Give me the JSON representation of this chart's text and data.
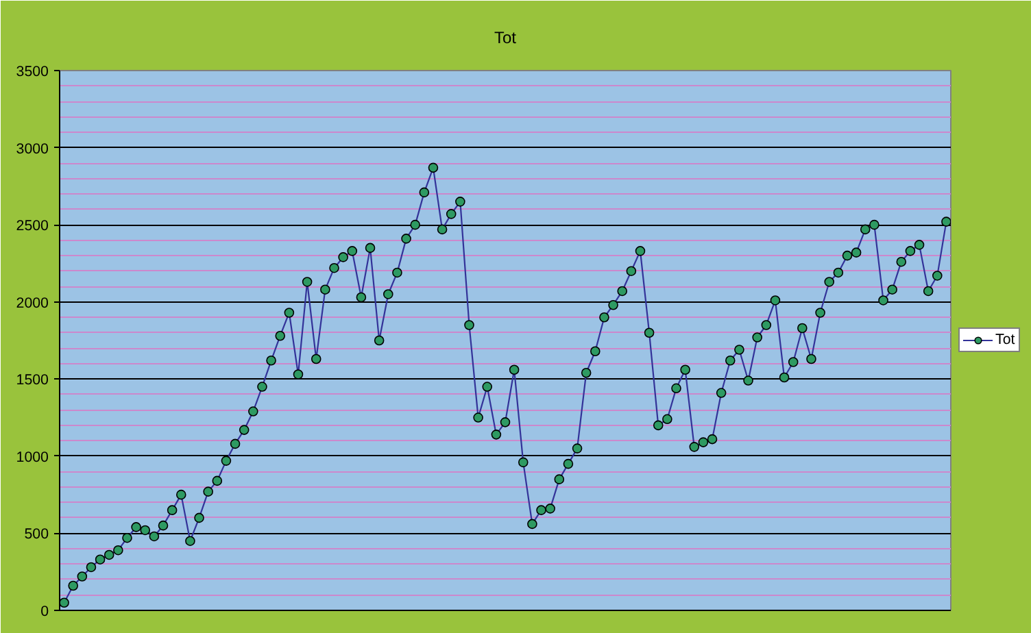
{
  "chart_data": {
    "type": "line",
    "title": "Tot",
    "categories": [
      null,
      null,
      null,
      null,
      null,
      null,
      null,
      null,
      null,
      null,
      null,
      null,
      null,
      null,
      null,
      null,
      null,
      null,
      null,
      null,
      null,
      null,
      null,
      null,
      null,
      null,
      null,
      null,
      null,
      null,
      null,
      null,
      null,
      null,
      null,
      null,
      null,
      null,
      null,
      null,
      null,
      null,
      null,
      null,
      null,
      null,
      null,
      null,
      null,
      null,
      null,
      null,
      null,
      null,
      null,
      null,
      null,
      null,
      null,
      null,
      null,
      null,
      null,
      null,
      null,
      null,
      null,
      null,
      null,
      null,
      null,
      null,
      null,
      null,
      null,
      null,
      null,
      null,
      null,
      null,
      null,
      null,
      null,
      null,
      null,
      null,
      null,
      null,
      null,
      null,
      null,
      null,
      null,
      null,
      null,
      null,
      null,
      null,
      null
    ],
    "series": [
      {
        "name": "Tot",
        "color": "#333399",
        "values": [
          50,
          160,
          220,
          280,
          330,
          360,
          390,
          470,
          540,
          520,
          480,
          550,
          650,
          750,
          450,
          600,
          770,
          840,
          970,
          1080,
          1170,
          1290,
          1450,
          1620,
          1780,
          1930,
          1530,
          2130,
          1630,
          2080,
          2220,
          2290,
          2330,
          2030,
          2350,
          1750,
          2050,
          2190,
          2410,
          2500,
          2710,
          2870,
          2470,
          2570,
          2650,
          1850,
          1250,
          1450,
          1140,
          1220,
          1560,
          960,
          560,
          650,
          660,
          850,
          950,
          1050,
          1540,
          1680,
          1900,
          1980,
          2070,
          2200,
          2330,
          1800,
          1200,
          1240,
          1440,
          1560,
          1060,
          1090,
          1110,
          1410,
          1620,
          1690,
          1490,
          1770,
          1850,
          2010,
          1510,
          1610,
          1830,
          1630,
          1930,
          2130,
          2190,
          2300,
          2320,
          2470,
          2500,
          2010,
          2080,
          2260,
          2330,
          2370,
          2070,
          2170,
          2520
        ]
      }
    ],
    "ylim": [
      0,
      3500
    ],
    "yticks": [
      0,
      {
        "value": 100,
        "label": null
      },
      {
        "value": 200,
        "label": null
      },
      {
        "value": 300,
        "label": null
      },
      {
        "value": 400,
        "label": null
      },
      500,
      {
        "value": 600,
        "label": null
      },
      {
        "value": 700,
        "label": null
      },
      {
        "value": 800,
        "label": null
      },
      {
        "value": 900,
        "label": null
      },
      1000,
      {
        "value": 1100,
        "label": null
      },
      {
        "value": 1200,
        "label": null
      },
      {
        "value": 1300,
        "label": null
      },
      {
        "value": 1400,
        "label": null
      },
      1500,
      {
        "value": 1600,
        "label": null
      },
      {
        "value": 1700,
        "label": null
      },
      {
        "value": 1800,
        "label": null
      },
      {
        "value": 1900,
        "label": null
      },
      2000,
      {
        "value": 2100,
        "label": null
      },
      {
        "value": 2200,
        "label": null
      },
      {
        "value": 2300,
        "label": null
      },
      {
        "value": 2400,
        "label": null
      },
      2500,
      {
        "value": 2600,
        "label": null
      },
      {
        "value": 2700,
        "label": null
      },
      {
        "value": 2800,
        "label": null
      },
      {
        "value": 2900,
        "label": null
      },
      3000,
      {
        "value": 3100,
        "label": null
      },
      {
        "value": 3200,
        "label": null
      },
      {
        "value": 3300,
        "label": null
      },
      {
        "value": 3400,
        "label": null
      },
      3500
    ],
    "grid": "y",
    "legend": "right",
    "marker": "circle",
    "tick_labels": "y"
  }
}
